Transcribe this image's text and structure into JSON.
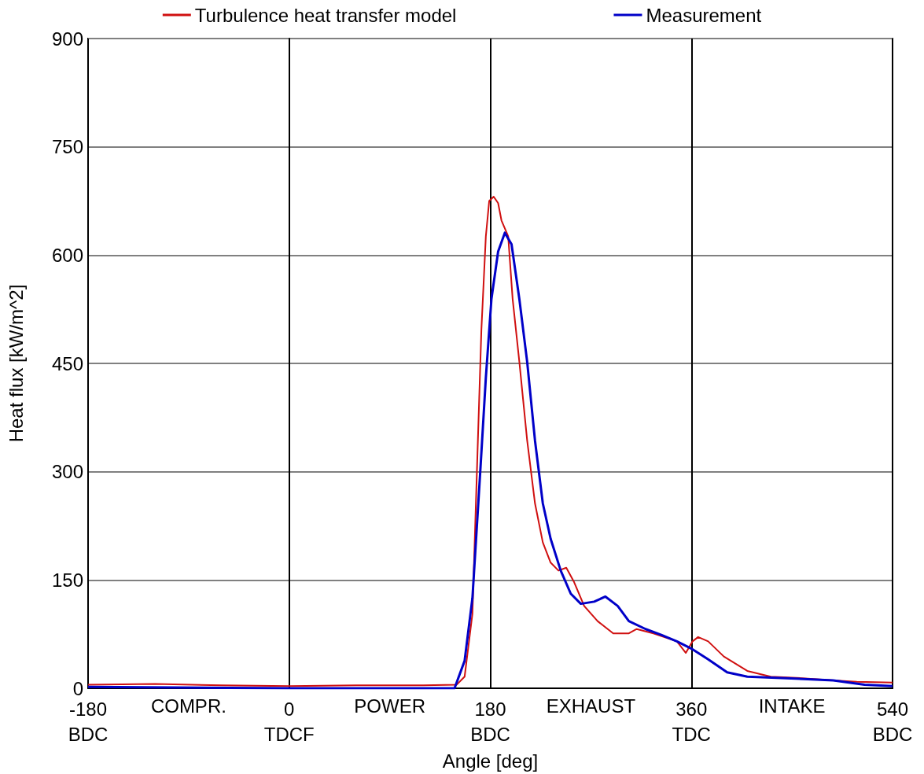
{
  "chart_data": {
    "type": "line",
    "xlabel": "Angle [deg]",
    "ylabel": "Heat flux [kW/m^2]",
    "xlim": [
      -180,
      540
    ],
    "xticks": [
      {
        "value": -180,
        "label": "-180\nBDC"
      },
      {
        "value": 0,
        "label": "0\nTDCF"
      },
      {
        "value": 180,
        "label": "180\nBDC"
      },
      {
        "value": 360,
        "label": "360\nTDC"
      },
      {
        "value": 540,
        "label": "540\nBDC"
      }
    ],
    "annotations": [
      "COMPR.",
      "POWER",
      "EXHAUST",
      "INTAKE"
    ],
    "ylim": [
      0,
      900
    ],
    "yticks": [
      0,
      150,
      300,
      450,
      600,
      750,
      900
    ],
    "grid": true,
    "legend": "top",
    "marker": "none",
    "line_style": "solid",
    "series": [
      {
        "name": "Turbulence heat transfer model",
        "color": "#d01010",
        "x": [
          -180,
          -120,
          -60,
          0,
          60,
          120,
          150,
          157,
          164,
          168,
          172,
          176,
          179,
          183,
          187,
          190,
          196,
          200,
          206,
          213,
          220,
          227,
          234,
          241,
          248,
          255,
          264,
          276,
          290,
          304,
          311,
          326,
          347,
          355,
          361,
          366,
          375,
          389,
          410,
          431,
          459,
          487,
          508,
          540
        ],
        "values": [
          5,
          6,
          4,
          3,
          4,
          4,
          5,
          16,
          103,
          300,
          496,
          626,
          675,
          681,
          672,
          648,
          626,
          539,
          452,
          343,
          256,
          202,
          174,
          163,
          167,
          147,
          114,
          93,
          76,
          76,
          82,
          76,
          65,
          49,
          65,
          71,
          65,
          44,
          24,
          16,
          14,
          11,
          9,
          8
        ]
      },
      {
        "name": "Measurement",
        "color": "#0000c8",
        "x": [
          -180,
          0,
          100,
          148,
          157,
          164,
          171,
          176,
          181,
          187,
          193,
          199,
          206,
          213,
          220,
          227,
          234,
          243,
          252,
          261,
          273,
          283,
          294,
          304,
          319,
          333,
          347,
          361,
          375,
          392,
          410,
          445,
          487,
          515,
          540
        ],
        "values": [
          2,
          0,
          0,
          0,
          38,
          125,
          300,
          430,
          539,
          605,
          631,
          615,
          539,
          452,
          343,
          256,
          207,
          163,
          131,
          117,
          120,
          127,
          114,
          93,
          82,
          74,
          65,
          54,
          40,
          22,
          16,
          14,
          11,
          5,
          3
        ]
      }
    ]
  }
}
